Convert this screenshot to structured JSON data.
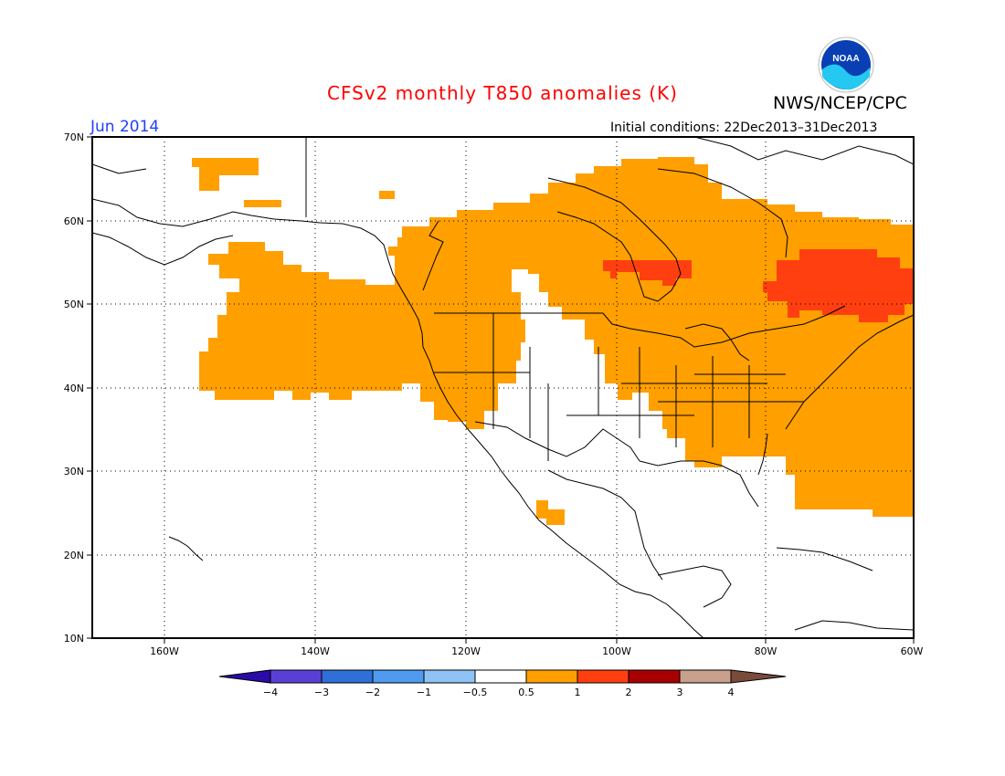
{
  "header": {
    "title": "CFSv2 monthly T850 anomalies (K)",
    "agency": "NWS/NCEP/CPC",
    "month": "Jun 2014",
    "initial_conditions": "Initial conditions: 22Dec2013–31Dec2013",
    "logo_text": "NOAA"
  },
  "map": {
    "lon_range": [
      -172,
      -60
    ],
    "lat_range": [
      10,
      70
    ],
    "lat_labels": [
      "70N",
      "60N",
      "50N",
      "40N",
      "30N",
      "20N",
      "10N"
    ],
    "lon_labels": [
      "160W",
      "140W",
      "120W",
      "100W",
      "80W",
      "60W"
    ],
    "grid_lines": "dotted"
  },
  "colorbar": {
    "labels": [
      "−4",
      "−3",
      "−2",
      "−1",
      "−0.5",
      "0.5",
      "1",
      "2",
      "3",
      "4"
    ],
    "colors": [
      "#2a0aa8",
      "#5a3fd6",
      "#2f6fd8",
      "#4f9bf0",
      "#8ec3f5",
      "#ffffff",
      "#ff9f00",
      "#ff3f10",
      "#a80000",
      "#c9a08c",
      "#7a4a3a"
    ]
  },
  "anomaly_colors": {
    "0.5-1": "#ff9f00",
    "1-2": "#ff3f10"
  }
}
